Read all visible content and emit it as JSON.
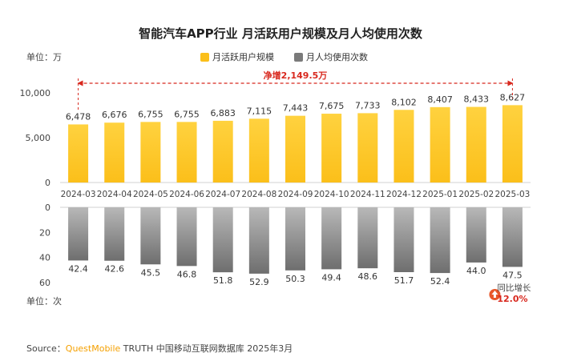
{
  "title": "智能汽车APP行业 月活跃用户规模及月人均使用次数",
  "units": {
    "top": "单位：万",
    "bottom": "单位：次"
  },
  "legend": [
    {
      "label": "月活跃用户规模",
      "color": "#fbbf1a"
    },
    {
      "label": "月人均使用次数",
      "color": "#7a7a7a"
    }
  ],
  "source": {
    "prefix": "Source：",
    "brand": "QuestMobile",
    "rest": " TRUTH 中国移动互联网数据库 2025年3月"
  },
  "annotations": {
    "net_growth": "净增2,149.5万",
    "yoy_label": "同比增长",
    "yoy_value": "12.0%"
  },
  "colors": {
    "mau": "#fbbf1a",
    "usage": "#7a7a7a",
    "accent": "#d8281e"
  },
  "chart_data": [
    {
      "type": "bar",
      "categories": [
        "2024-03",
        "2024-04",
        "2024-05",
        "2024-06",
        "2024-07",
        "2024-08",
        "2024-09",
        "2024-10",
        "2024-11",
        "2024-12",
        "2025-01",
        "2025-02",
        "2025-03"
      ],
      "series": [
        {
          "name": "月活跃用户规模",
          "values": [
            6478,
            6676,
            6755,
            6755,
            6883,
            7115,
            7443,
            7675,
            7733,
            8102,
            8407,
            8433,
            8627
          ]
        }
      ],
      "value_labels": [
        "6,478",
        "6,676",
        "6,755",
        "6,755",
        "6,883",
        "7,115",
        "7,443",
        "7,675",
        "7,733",
        "8,102",
        "8,407",
        "8,433",
        "8,627"
      ],
      "ylim": [
        0,
        10000
      ],
      "yticks": [
        0,
        5000,
        10000
      ],
      "ytick_labels": [
        "0",
        "5,000",
        "10,000"
      ]
    },
    {
      "type": "bar",
      "categories": [
        "2024-03",
        "2024-04",
        "2024-05",
        "2024-06",
        "2024-07",
        "2024-08",
        "2024-09",
        "2024-10",
        "2024-11",
        "2024-12",
        "2025-01",
        "2025-02",
        "2025-03"
      ],
      "series": [
        {
          "name": "月人均使用次数",
          "values": [
            42.4,
            42.6,
            45.5,
            46.8,
            51.8,
            52.9,
            50.3,
            49.4,
            48.6,
            51.7,
            52.4,
            44.0,
            47.5
          ]
        }
      ],
      "value_labels": [
        "42.4",
        "42.6",
        "45.5",
        "46.8",
        "51.8",
        "52.9",
        "50.3",
        "49.4",
        "48.6",
        "51.7",
        "52.4",
        "44.0",
        "47.5"
      ],
      "ylim": [
        0,
        60
      ],
      "inverted": true,
      "yticks": [
        0,
        20,
        40,
        60
      ],
      "ytick_labels": [
        "0",
        "20",
        "40",
        "60"
      ]
    }
  ]
}
